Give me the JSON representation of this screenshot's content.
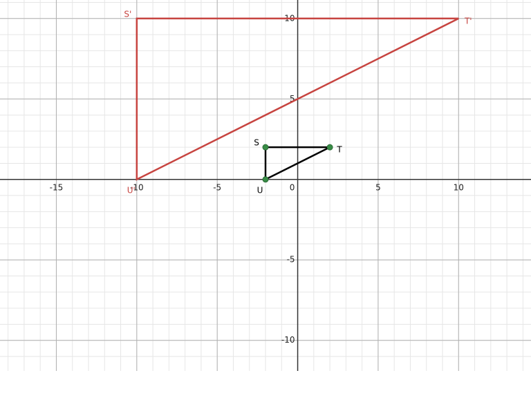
{
  "chart_data": {
    "type": "polygon",
    "xlim": [
      -18.5,
      14.5
    ],
    "ylim": [
      -11.9,
      11.15
    ],
    "xticks": [
      -15,
      -10,
      -5,
      0,
      5,
      10
    ],
    "yticks": [
      -10,
      -5,
      5,
      10
    ],
    "grid": true,
    "minor_grid": true,
    "shapes": [
      {
        "color": "#c74440",
        "show_points": false,
        "points": [
          {
            "label": "S'",
            "x": -10,
            "y": 10
          },
          {
            "label": "T'",
            "x": 10,
            "y": 10
          },
          {
            "label": "U'",
            "x": -10,
            "y": 0
          }
        ]
      },
      {
        "color": "#000000",
        "point_color": "#388c46",
        "show_points": true,
        "points": [
          {
            "label": "S",
            "x": -2,
            "y": 2
          },
          {
            "label": "T",
            "x": 2,
            "y": 2
          },
          {
            "label": "U",
            "x": -2,
            "y": 0
          }
        ]
      }
    ]
  }
}
